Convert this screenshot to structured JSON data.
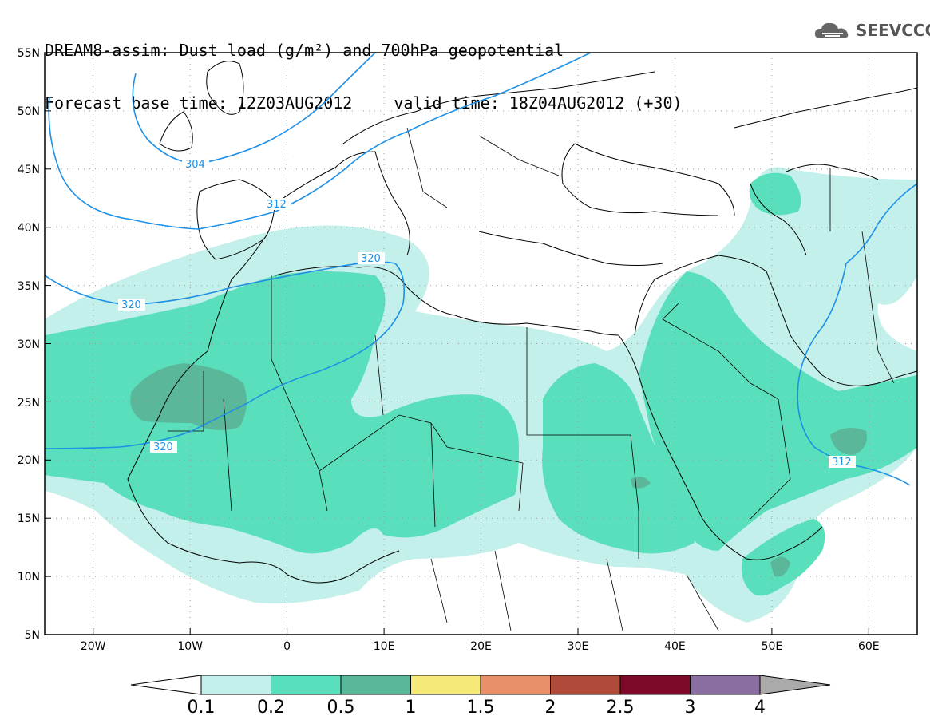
{
  "header": {
    "title": "DREAM8-assim: Dust load (g/m²) and 700hPa geopotential",
    "base_time_label": "Forecast base time: 12Z03AUG2012",
    "valid_time_label": "valid time: 18Z04AUG2012 (+30)"
  },
  "logo": {
    "text": "SEEVCCC",
    "icon": "cloud-logo-icon",
    "color": "#555555"
  },
  "map": {
    "lon_range": [
      -25,
      65
    ],
    "lat_range": [
      5,
      55
    ],
    "lat_ticks": [
      "55N",
      "50N",
      "45N",
      "40N",
      "35N",
      "30N",
      "25N",
      "20N",
      "15N",
      "10N",
      "5N"
    ],
    "lon_ticks": [
      "20W",
      "10W",
      "0",
      "10E",
      "20E",
      "30E",
      "40E",
      "50E",
      "60E"
    ],
    "grid": "dotted",
    "contour_labels": [
      "304",
      "312",
      "320",
      "320",
      "320",
      "312"
    ]
  },
  "legend": {
    "labels": [
      "0.1",
      "0.2",
      "0.5",
      "1",
      "1.5",
      "2",
      "2.5",
      "3",
      "4"
    ],
    "colors": [
      "#ffffff",
      "#c3f0ea",
      "#59dfbb",
      "#5ab79a",
      "#f5e97a",
      "#e8906a",
      "#b04a3a",
      "#7e0a2a",
      "#8a6ea0",
      "#aaaaaa"
    ]
  }
}
